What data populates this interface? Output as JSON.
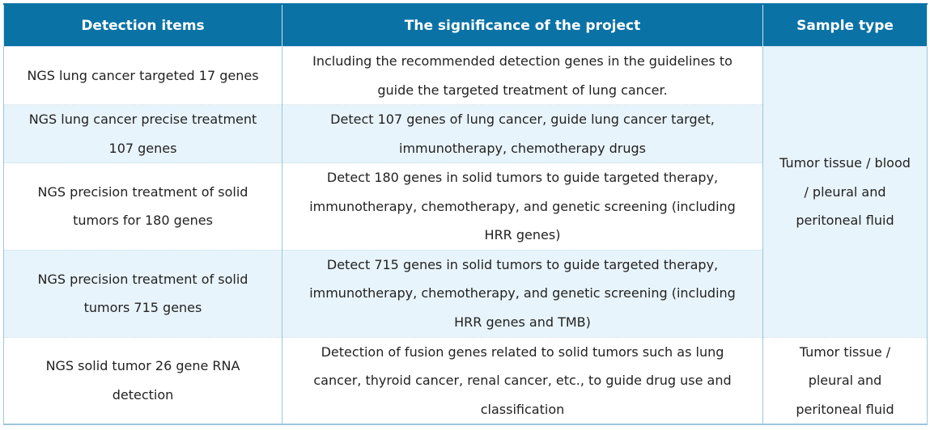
{
  "table": {
    "headers": [
      "Detection items",
      "The significance of the project",
      "Sample type"
    ],
    "rows": [
      {
        "item_lines": [
          "NGS lung cancer targeted 17 genes"
        ],
        "significance_lines": [
          "Including the recommended detection genes in the guidelines to",
          "guide the targeted treatment of lung cancer."
        ]
      },
      {
        "item_lines": [
          "NGS lung cancer precise treatment",
          "107 genes"
        ],
        "significance_lines": [
          "Detect 107 genes of lung cancer, guide lung cancer target,",
          "immunotherapy, chemotherapy drugs"
        ]
      },
      {
        "item_lines": [
          "NGS precision treatment of solid",
          "tumors for 180 genes"
        ],
        "significance_lines": [
          "Detect 180 genes in solid tumors to guide targeted therapy,",
          "immunotherapy, chemotherapy, and genetic screening (including",
          "HRR genes)"
        ]
      },
      {
        "item_lines": [
          "NGS precision treatment of solid",
          "tumors 715 genes"
        ],
        "significance_lines": [
          "Detect 715 genes in solid tumors to guide targeted therapy,",
          "immunotherapy, chemotherapy, and genetic screening (including",
          "HRR genes and TMB)"
        ]
      },
      {
        "item_lines": [
          "NGS solid tumor 26 gene RNA",
          "detection"
        ],
        "significance_lines": [
          "Detection of fusion genes related to solid tumors such as lung",
          "cancer, thyroid cancer, renal cancer, etc., to guide drug use and",
          "classification"
        ]
      }
    ],
    "sample_type_merged_lines": [
      "Tumor tissue / blood",
      "/ pleural and",
      "peritoneal fluid"
    ],
    "sample_type_last_lines": [
      "Tumor tissue /",
      "pleural and",
      "peritoneal fluid"
    ]
  },
  "colors": {
    "header_bg": "#0b72a5",
    "header_text": "#ffffff",
    "alt_row_bg": "#e8f4fb",
    "border": "#9cc6dc"
  }
}
